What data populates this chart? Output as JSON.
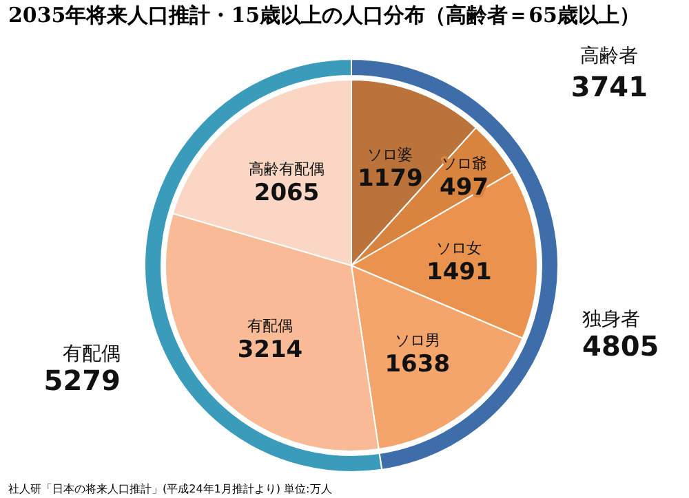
{
  "chart_data": [
    {
      "type": "pie",
      "title": "2035年将来人口推計・15歳以上の人口分布（高齢者＝65歳以上）",
      "data_labels": true,
      "categories": [
        "ソロ婆",
        "ソロ爺",
        "ソロ女",
        "ソロ男",
        "有配偶",
        "高齢有配偶"
      ],
      "values": [
        1179,
        497,
        1491,
        1638,
        3214,
        2065
      ],
      "colors": [
        "#b9733b",
        "#d8843f",
        "#e9934e",
        "#f4a56c",
        "#f8bb96",
        "#fad7c4"
      ],
      "annotations": [
        "社人研「日本の将来人口推計」(平成24年1月推計より) 単位:万人"
      ]
    },
    {
      "type": "donut",
      "data_labels": true,
      "categories": [
        "独身者",
        "有配偶"
      ],
      "values": [
        4805,
        5279
      ],
      "colors": [
        "#3e6ea9",
        "#3a9cba"
      ],
      "annotations": [
        "高齢者\n3741"
      ]
    }
  ]
}
